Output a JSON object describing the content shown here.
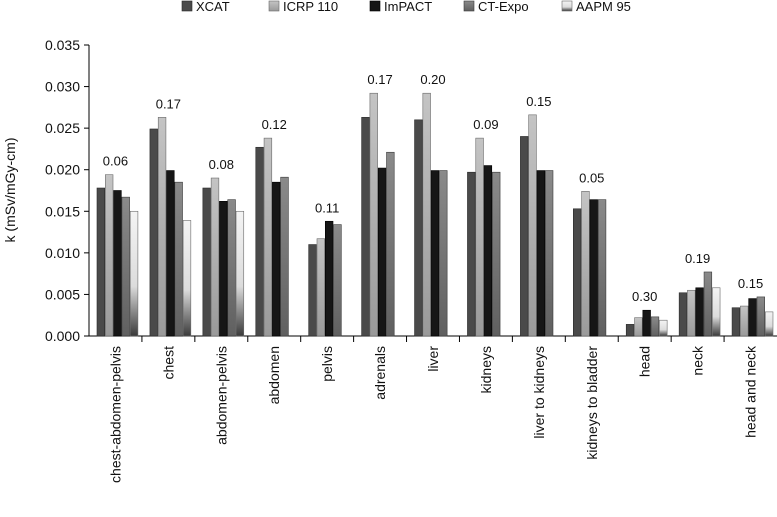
{
  "chart_data": {
    "type": "bar",
    "ylabel": "k (mSv/mGy-cm)",
    "ylim": [
      0,
      0.035
    ],
    "yticks": [
      "0.000",
      "0.005",
      "0.010",
      "0.015",
      "0.020",
      "0.025",
      "0.030",
      "0.035"
    ],
    "grid": false,
    "legend_position": "top",
    "categories": [
      "chest-abdomen-pelvis",
      "chest",
      "abdomen-pelvis",
      "abdomen",
      "pelvis",
      "adrenals",
      "liver",
      "kidneys",
      "liver to kidneys",
      "kidneys to bladder",
      "head",
      "neck",
      "head and neck"
    ],
    "series": [
      {
        "name": "XCAT",
        "color": "#4a4a4a",
        "values": [
          0.0178,
          0.0249,
          0.0178,
          0.0227,
          0.011,
          0.0263,
          0.026,
          0.0197,
          0.024,
          0.0153,
          0.0014,
          0.0052,
          0.0034
        ]
      },
      {
        "name": "ICRP 110",
        "color": "#b4b4b4",
        "values": [
          0.0194,
          0.0263,
          0.019,
          0.0238,
          0.0117,
          0.0292,
          0.0292,
          0.0238,
          0.0266,
          0.0174,
          0.0022,
          0.0055,
          0.0036
        ]
      },
      {
        "name": "ImPACT",
        "color": "#161616",
        "values": [
          0.0175,
          0.0199,
          0.0162,
          0.0185,
          0.0138,
          0.0202,
          0.0199,
          0.0205,
          0.0199,
          0.0164,
          0.0031,
          0.0058,
          0.0045
        ]
      },
      {
        "name": "CT-Expo",
        "color": "#7a7a7a",
        "values": [
          0.0167,
          0.0185,
          0.0164,
          0.0191,
          0.0134,
          0.0221,
          0.0199,
          0.0197,
          0.0199,
          0.0164,
          0.0023,
          0.0077,
          0.0047
        ]
      },
      {
        "name": "AAPM 95",
        "color": "#e4e4e4",
        "values": [
          0.015,
          0.0139,
          0.015,
          null,
          null,
          null,
          null,
          null,
          null,
          null,
          0.0019,
          0.0058,
          0.0029
        ]
      }
    ],
    "annotations": [
      "0.06",
      "0.17",
      "0.08",
      "0.12",
      "0.11",
      "0.17",
      "0.20",
      "0.09",
      "0.15",
      "0.05",
      "0.30",
      "0.19",
      "0.15"
    ]
  }
}
